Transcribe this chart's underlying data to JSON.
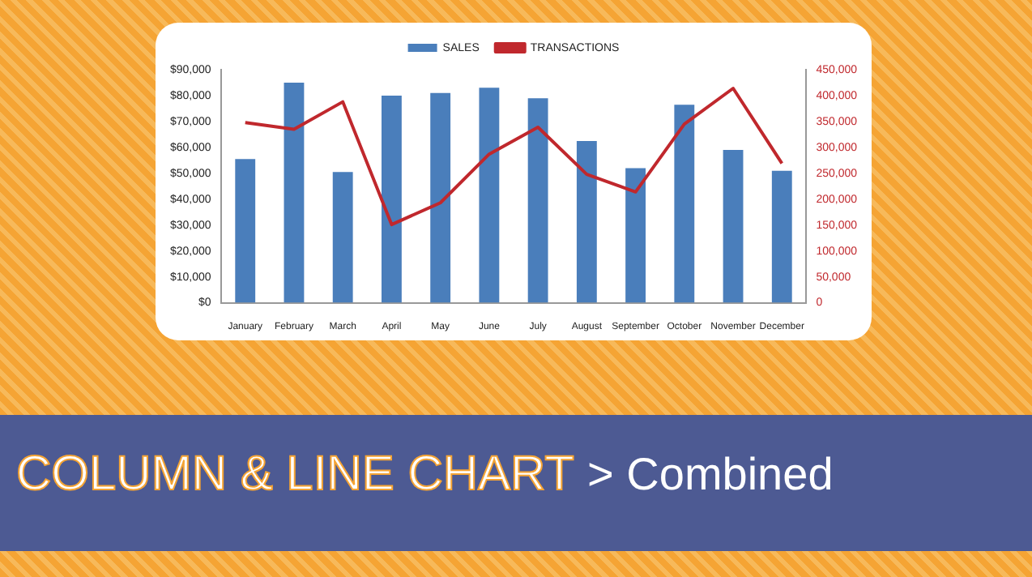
{
  "chart_data": {
    "type": "bar",
    "title": "COLUMN & LINE CHART",
    "subtitle": "> Combined",
    "categories": [
      "January",
      "February",
      "March",
      "April",
      "May",
      "June",
      "July",
      "August",
      "September",
      "October",
      "November",
      "December"
    ],
    "series": [
      {
        "name": "SALES",
        "color": "#4a7ebb",
        "values": [
          55500,
          85000,
          50500,
          80000,
          81000,
          83000,
          79000,
          62500,
          52000,
          76500,
          59000,
          51000
        ]
      },
      {
        "name": "TRANSACTIONS",
        "type": "line",
        "axis": "y2",
        "color": "#c0282d",
        "values": [
          348000,
          335000,
          388000,
          151000,
          193000,
          287000,
          339000,
          248000,
          214000,
          345000,
          414000,
          269000
        ]
      }
    ],
    "ylim": [
      0,
      90000
    ],
    "yticks": [
      {
        "value": 0,
        "label": "$0"
      },
      {
        "value": 10000,
        "label": "$10,000"
      },
      {
        "value": 20000,
        "label": "$20,000"
      },
      {
        "value": 30000,
        "label": "$30,000"
      },
      {
        "value": 40000,
        "label": "$40,000"
      },
      {
        "value": 50000,
        "label": "$50,000"
      },
      {
        "value": 60000,
        "label": "$60,000"
      },
      {
        "value": 70000,
        "label": "$70,000"
      },
      {
        "value": 80000,
        "label": "$80,000"
      },
      {
        "value": 90000,
        "label": "$90,000"
      }
    ],
    "y2lim": [
      0,
      450000
    ],
    "y2ticks": [
      0,
      {
        "value": 50000,
        "label": "50,000"
      },
      {
        "value": 100000,
        "label": "100,000"
      },
      {
        "value": 150000,
        "label": "150,000"
      },
      {
        "value": 200000,
        "label": "200,000"
      },
      {
        "value": 250000,
        "label": "250,000"
      },
      {
        "value": 300000,
        "label": "300,000"
      },
      {
        "value": 350000,
        "label": "350,000"
      },
      {
        "value": 400000,
        "label": "400,000"
      },
      {
        "value": 450000,
        "label": "450,000"
      }
    ],
    "grid": false,
    "legend": "top",
    "marker": "none",
    "line_style": "solid"
  }
}
